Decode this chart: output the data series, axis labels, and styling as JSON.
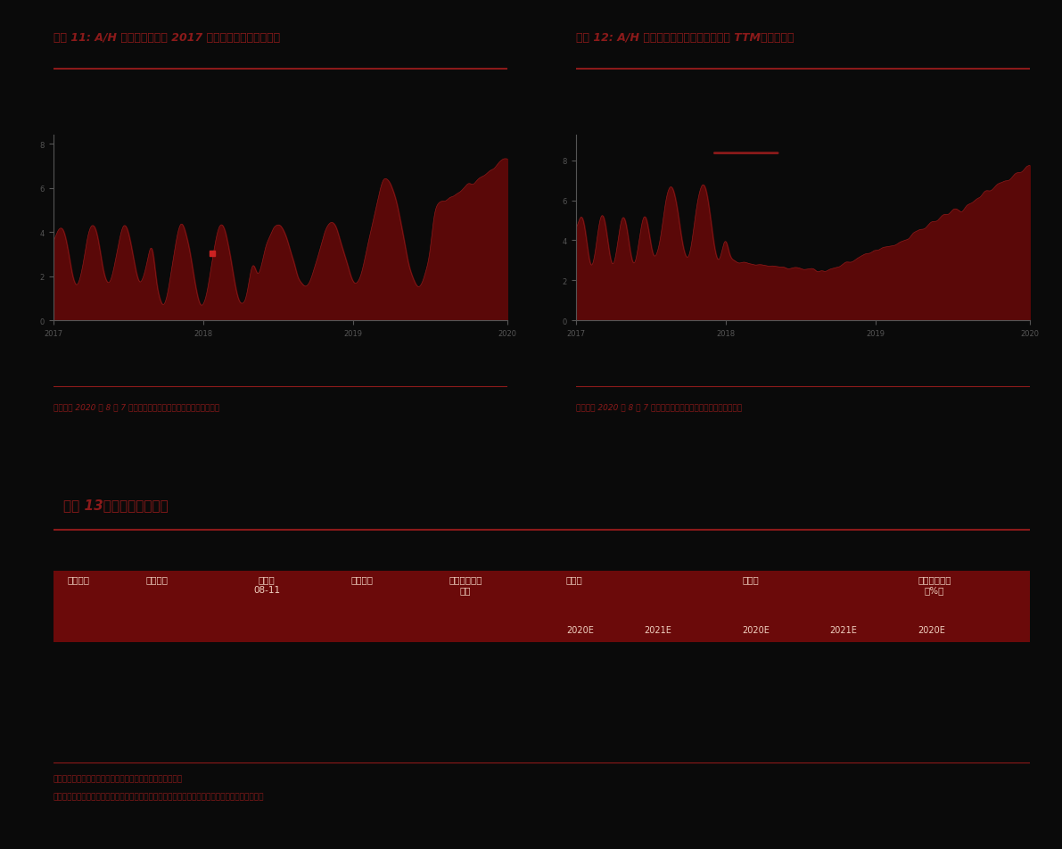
{
  "bg_color": "#0a0a0a",
  "title1": "图表 11: A/H 股主要手机公司 2017 年初至今总市值（合计）",
  "title2": "图表 12: A/H 股主要手机公司市盈率（历史 TTM，整体法）",
  "title3": "图表 13：可比公司估值表",
  "note1": "注：截至 2020 年 8 月 7 日；资料来源：万得资讯、中金公司研究部",
  "note2": "注：截至 2020 年 8 月 7 日；资料来源：万得资讯、中金公司研究部",
  "footer1": "资料来源：万得资讯、彭博资讯、公司公告、中金公司研究部",
  "footer2": "注：股价为当季季度末，是月中金模型假设，预测数据及截到年半年数平均；买卖使用市场一般预测",
  "dark_red": "#6b0a0a",
  "title_color": "#8b1a1a",
  "note_color": "#8b1a1a",
  "line_color": "#8b1a1a",
  "table_header_bg": "#6b0a0a",
  "table_cols": [
    "股票代码",
    "公司名称",
    "收盘价\n08-11",
    "交易货币",
    "市值（百万美\n元）",
    "市盈率\n\n2020E",
    "市盈率\n\n2021E",
    "市净率\n\n2020E",
    "市净率\n\n2021E",
    "净资产收益率\n（%）\n2020E"
  ],
  "chart_area_color": "#5a0808",
  "chart_line_color": "#8b1a1a"
}
